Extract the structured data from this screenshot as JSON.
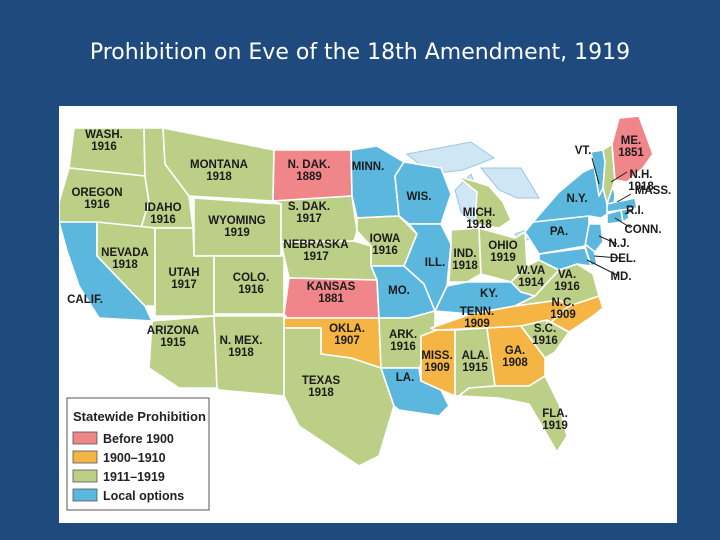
{
  "title": "Prohibition on Eve of the 18th Amendment, 1919",
  "colors": {
    "background": "#1f4a7e",
    "before_1900": "#f0868a",
    "1900_1910": "#f4b545",
    "1911_1919": "#bccf86",
    "local_options": "#5bb7de",
    "water": "#cfe6f4",
    "border": "#ffffff"
  },
  "legend": {
    "title": "Statewide Prohibition",
    "items": [
      {
        "key": "before_1900",
        "label": "Before 1900"
      },
      {
        "key": "1900_1910",
        "label": "1900–1910"
      },
      {
        "key": "1911_1919",
        "label": "1911–1919"
      },
      {
        "key": "local_options",
        "label": "Local options"
      }
    ]
  },
  "states": [
    {
      "id": "wash",
      "name": "WASH.",
      "year": "1916",
      "category": "1911_1919"
    },
    {
      "id": "oregon",
      "name": "OREGON",
      "year": "1916",
      "category": "1911_1919"
    },
    {
      "id": "calif",
      "name": "CALIF.",
      "year": "",
      "category": "local_options"
    },
    {
      "id": "idaho",
      "name": "IDAHO",
      "year": "1916",
      "category": "1911_1919"
    },
    {
      "id": "nevada",
      "name": "NEVADA",
      "year": "1918",
      "category": "1911_1919"
    },
    {
      "id": "montana",
      "name": "MONTANA",
      "year": "1918",
      "category": "1911_1919"
    },
    {
      "id": "wyoming",
      "name": "WYOMING",
      "year": "1919",
      "category": "1911_1919"
    },
    {
      "id": "utah",
      "name": "UTAH",
      "year": "1917",
      "category": "1911_1919"
    },
    {
      "id": "arizona",
      "name": "ARIZONA",
      "year": "1915",
      "category": "1911_1919"
    },
    {
      "id": "colo",
      "name": "COLO.",
      "year": "1916",
      "category": "1911_1919"
    },
    {
      "id": "nmex",
      "name": "N. MEX.",
      "year": "1918",
      "category": "1911_1919"
    },
    {
      "id": "ndak",
      "name": "N. DAK.",
      "year": "1889",
      "category": "before_1900"
    },
    {
      "id": "sdak",
      "name": "S. DAK.",
      "year": "1917",
      "category": "1911_1919"
    },
    {
      "id": "nebraska",
      "name": "NEBRASKA",
      "year": "1917",
      "category": "1911_1919"
    },
    {
      "id": "kansas",
      "name": "KANSAS",
      "year": "1881",
      "category": "before_1900"
    },
    {
      "id": "okla",
      "name": "OKLA.",
      "year": "1907",
      "category": "1900_1910"
    },
    {
      "id": "texas",
      "name": "TEXAS",
      "year": "1918",
      "category": "1911_1919"
    },
    {
      "id": "minn",
      "name": "MINN.",
      "year": "",
      "category": "local_options"
    },
    {
      "id": "iowa",
      "name": "IOWA",
      "year": "1916",
      "category": "1911_1919"
    },
    {
      "id": "mo",
      "name": "MO.",
      "year": "",
      "category": "local_options"
    },
    {
      "id": "ark",
      "name": "ARK.",
      "year": "1916",
      "category": "1911_1919"
    },
    {
      "id": "la",
      "name": "LA.",
      "year": "",
      "category": "local_options"
    },
    {
      "id": "wis",
      "name": "WIS.",
      "year": "",
      "category": "local_options"
    },
    {
      "id": "ill",
      "name": "ILL.",
      "year": "",
      "category": "local_options"
    },
    {
      "id": "mich",
      "name": "MICH.",
      "year": "1918",
      "category": "1911_1919"
    },
    {
      "id": "ind",
      "name": "IND.",
      "year": "1918",
      "category": "1911_1919"
    },
    {
      "id": "ohio",
      "name": "OHIO",
      "year": "1919",
      "category": "1911_1919"
    },
    {
      "id": "ky",
      "name": "KY.",
      "year": "",
      "category": "local_options"
    },
    {
      "id": "tenn",
      "name": "TENN.",
      "year": "1909",
      "category": "1900_1910"
    },
    {
      "id": "miss",
      "name": "MISS.",
      "year": "1909",
      "category": "1900_1910"
    },
    {
      "id": "ala",
      "name": "ALA.",
      "year": "1915",
      "category": "1911_1919"
    },
    {
      "id": "ga",
      "name": "GA.",
      "year": "1908",
      "category": "1900_1910"
    },
    {
      "id": "fla",
      "name": "FLA.",
      "year": "1919",
      "category": "1911_1919"
    },
    {
      "id": "sc",
      "name": "S.C.",
      "year": "1916",
      "category": "1911_1919"
    },
    {
      "id": "nc",
      "name": "N.C.",
      "year": "1909",
      "category": "1900_1910"
    },
    {
      "id": "va",
      "name": "VA.",
      "year": "1916",
      "category": "1911_1919"
    },
    {
      "id": "wva",
      "name": "W.VA",
      "year": "1914",
      "category": "1911_1919"
    },
    {
      "id": "md",
      "name": "MD.",
      "year": "",
      "category": "local_options"
    },
    {
      "id": "del",
      "name": "DEL.",
      "year": "",
      "category": "local_options"
    },
    {
      "id": "nj",
      "name": "N.J.",
      "year": "",
      "category": "local_options"
    },
    {
      "id": "pa",
      "name": "PA.",
      "year": "",
      "category": "local_options"
    },
    {
      "id": "ny",
      "name": "N.Y.",
      "year": "",
      "category": "local_options"
    },
    {
      "id": "conn",
      "name": "CONN.",
      "year": "",
      "category": "local_options"
    },
    {
      "id": "ri",
      "name": "R.I.",
      "year": "",
      "category": "local_options"
    },
    {
      "id": "mass",
      "name": "MASS.",
      "year": "",
      "category": "local_options"
    },
    {
      "id": "vt",
      "name": "VT.",
      "year": "",
      "category": "local_options"
    },
    {
      "id": "nh",
      "name": "N.H.",
      "year": "1918",
      "category": "1911_1919"
    },
    {
      "id": "me",
      "name": "ME.",
      "year": "1851",
      "category": "before_1900"
    }
  ]
}
